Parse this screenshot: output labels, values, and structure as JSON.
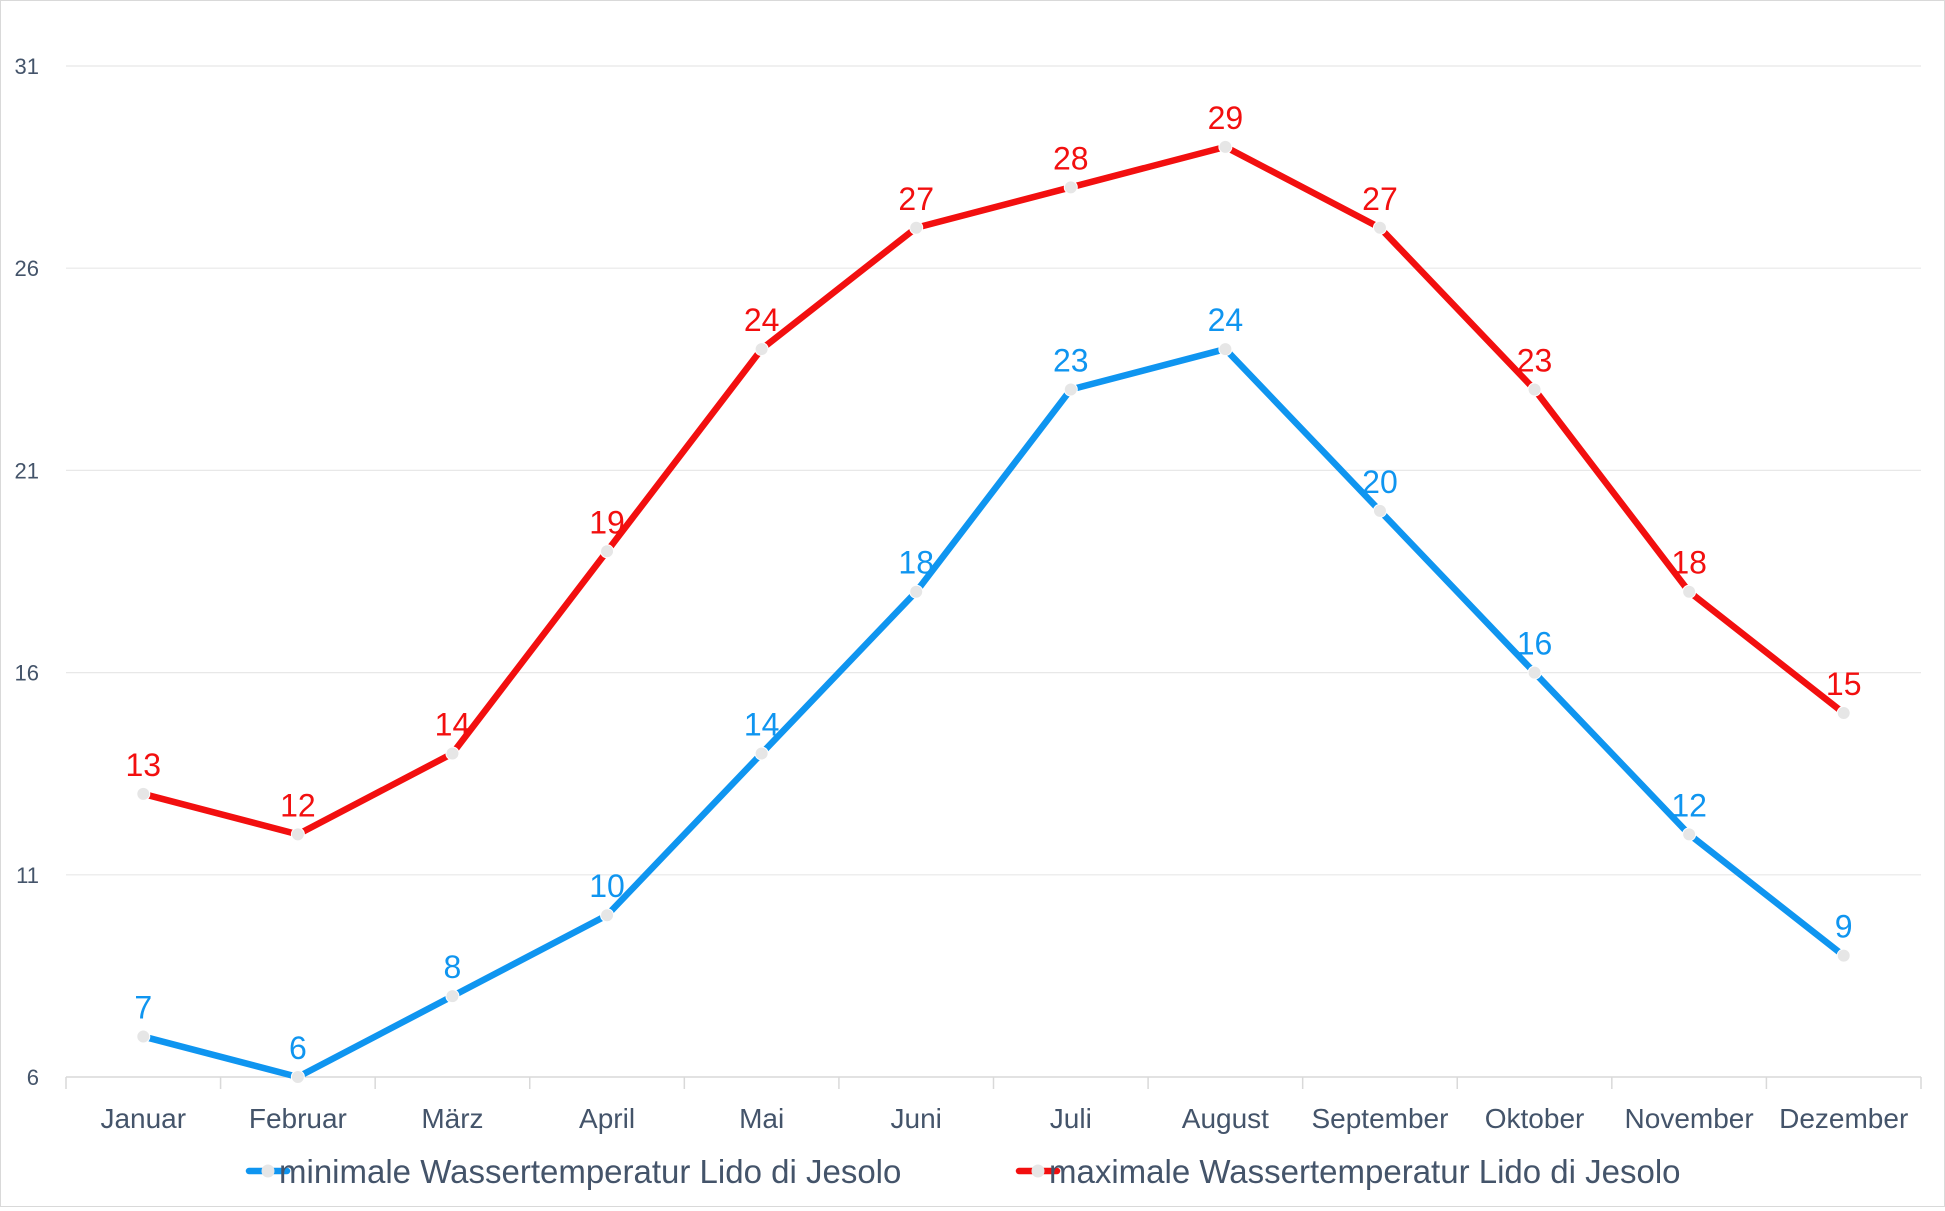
{
  "chart_data": {
    "type": "line",
    "title": "",
    "xlabel": "",
    "ylabel": "",
    "categories": [
      "Januar",
      "Februar",
      "März",
      "April",
      "Mai",
      "Juni",
      "Juli",
      "August",
      "September",
      "Oktober",
      "November",
      "Dezember"
    ],
    "ylim": [
      6,
      31
    ],
    "yticks": [
      6,
      11,
      16,
      21,
      26,
      31
    ],
    "grid": true,
    "legend_position": "bottom",
    "series": [
      {
        "name": "minimale Wassertemperatur Lido di Jesolo",
        "color": "#0f95f0",
        "values": [
          7,
          6,
          8,
          10,
          14,
          18,
          23,
          24,
          20,
          16,
          12,
          9
        ]
      },
      {
        "name": "maximale Wassertemperatur Lido di Jesolo",
        "color": "#f20f0f",
        "values": [
          13,
          12,
          14,
          19,
          24,
          27,
          28,
          29,
          27,
          23,
          18,
          15
        ]
      }
    ],
    "marker_color": "#e6e6e6",
    "gridline_color": "#e8e8e8",
    "text_color": "#44546a"
  }
}
